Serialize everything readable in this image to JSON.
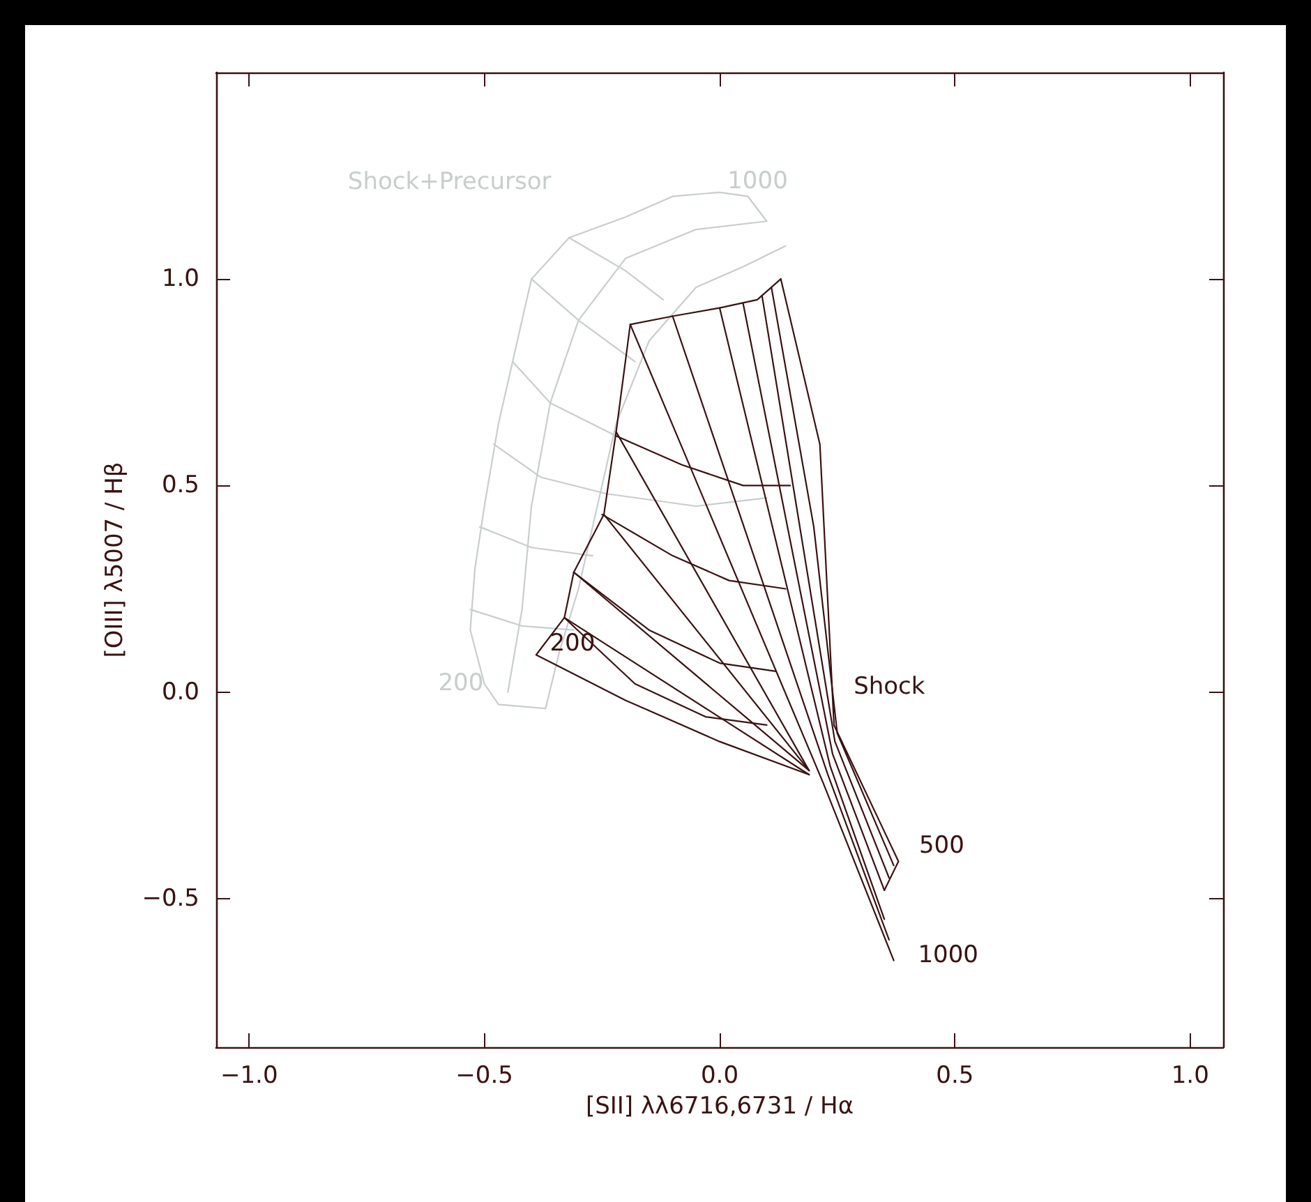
{
  "chart_data": {
    "type": "line",
    "xlabel": "[SII] λλ6716,6731 / Hα",
    "ylabel": "[OIII] λ5007 / Hβ",
    "xlim": [
      -1.07,
      1.07
    ],
    "ylim": [
      -0.86,
      1.5
    ],
    "xticks": [
      {
        "value": -1.0,
        "label": "−1.0"
      },
      -0.5,
      {
        "value": 0.0,
        "label": "0.0"
      },
      0.5,
      {
        "value": 1.0,
        "label": "1.0"
      }
    ],
    "yticks": [
      -0.5,
      {
        "value": 0.0,
        "label": "0.0"
      },
      0.5,
      {
        "value": 1.0,
        "label": "1.0"
      }
    ],
    "grid": false,
    "marker": "none",
    "line_style": "solid",
    "series": [
      {
        "name": "Shock+Precursor",
        "color": "#c8cdcd",
        "x": [
          0.14,
          0.05,
          -0.05,
          -0.15,
          -0.22,
          -0.26,
          -0.3,
          -0.34,
          -0.37,
          -0.47,
          -0.5,
          -0.53,
          -0.52,
          -0.5,
          -0.47,
          -0.44,
          -0.4,
          -0.32,
          -0.2,
          -0.1,
          0.0,
          0.06,
          0.1
        ],
        "values": [
          1.08,
          1.03,
          0.98,
          0.85,
          0.65,
          0.45,
          0.25,
          0.1,
          -0.04,
          -0.03,
          0.02,
          0.15,
          0.3,
          0.45,
          0.65,
          0.8,
          1.0,
          1.1,
          1.15,
          1.2,
          1.21,
          1.2,
          1.14
        ]
      },
      {
        "color": "#c8cdcd",
        "x": [
          -0.45,
          -0.42,
          -0.4,
          -0.36,
          -0.3,
          -0.2,
          -0.05,
          0.1
        ],
        "values": [
          0.0,
          0.2,
          0.45,
          0.7,
          0.9,
          1.05,
          1.12,
          1.14
        ]
      },
      {
        "color": "#c8cdcd",
        "x": [
          -0.32,
          -0.2,
          -0.12
        ],
        "values": [
          1.1,
          1.02,
          0.95
        ]
      },
      {
        "color": "#c8cdcd",
        "x": [
          -0.4,
          -0.3,
          -0.18
        ],
        "values": [
          1.0,
          0.9,
          0.8
        ]
      },
      {
        "color": "#c8cdcd",
        "x": [
          -0.44,
          -0.36,
          -0.22
        ],
        "values": [
          0.8,
          0.7,
          0.62
        ]
      },
      {
        "color": "#c8cdcd",
        "x": [
          -0.48,
          -0.38,
          -0.24,
          -0.05,
          0.1
        ],
        "values": [
          0.6,
          0.52,
          0.48,
          0.45,
          0.47
        ]
      },
      {
        "color": "#c8cdcd",
        "x": [
          -0.51,
          -0.4,
          -0.27
        ],
        "values": [
          0.4,
          0.35,
          0.33
        ]
      },
      {
        "color": "#c8cdcd",
        "x": [
          -0.53,
          -0.42,
          -0.31
        ],
        "values": [
          0.2,
          0.16,
          0.15
        ]
      },
      {
        "name": "Shock",
        "color": "#3a1212",
        "x": [
          0.35,
          0.38,
          0.243,
          0.213,
          0.13
        ],
        "values": [
          -0.48,
          -0.41,
          -0.08,
          0.6,
          1.0
        ]
      },
      {
        "color": "#3a1212",
        "x": [
          0.13,
          0.08,
          0.0,
          -0.1,
          -0.19,
          -0.22,
          -0.246,
          -0.31,
          -0.33,
          -0.39,
          -0.2,
          0.0,
          0.19
        ],
        "values": [
          1.0,
          0.95,
          0.93,
          0.91,
          0.89,
          0.63,
          0.43,
          0.29,
          0.18,
          0.09,
          -0.02,
          -0.12,
          -0.2
        ]
      },
      {
        "color": "#3a1212",
        "x": [
          -0.19,
          0.22,
          0.37
        ],
        "values": [
          0.89,
          -0.22,
          -0.65
        ]
      },
      {
        "color": "#3a1212",
        "x": [
          -0.1,
          0.23,
          0.36
        ],
        "values": [
          0.91,
          -0.2,
          -0.6
        ]
      },
      {
        "color": "#3a1212",
        "x": [
          0.0,
          0.235,
          0.35
        ],
        "values": [
          0.93,
          -0.18,
          -0.55
        ]
      },
      {
        "color": "#3a1212",
        "x": [
          0.05,
          0.24,
          0.35
        ],
        "values": [
          0.94,
          -0.15,
          -0.48
        ]
      },
      {
        "color": "#3a1212",
        "x": [
          0.09,
          0.245,
          0.36
        ],
        "values": [
          0.96,
          -0.12,
          -0.45
        ]
      },
      {
        "color": "#3a1212",
        "x": [
          0.11,
          0.2,
          0.25,
          0.37
        ],
        "values": [
          0.98,
          0.4,
          -0.1,
          -0.42
        ]
      },
      {
        "color": "#3a1212",
        "x": [
          -0.22,
          0.19
        ],
        "values": [
          0.63,
          -0.19
        ]
      },
      {
        "color": "#3a1212",
        "x": [
          -0.246,
          0.19
        ],
        "values": [
          0.43,
          -0.19
        ]
      },
      {
        "color": "#3a1212",
        "x": [
          -0.31,
          0.19
        ],
        "values": [
          0.29,
          -0.19
        ]
      },
      {
        "color": "#3a1212",
        "x": [
          -0.33,
          0.19
        ],
        "values": [
          0.18,
          -0.2
        ]
      },
      {
        "color": "#3a1212",
        "x": [
          -0.22,
          -0.08,
          0.05,
          0.15
        ],
        "values": [
          0.62,
          0.55,
          0.5,
          0.5
        ]
      },
      {
        "color": "#3a1212",
        "x": [
          -0.25,
          -0.1,
          0.02,
          0.14
        ],
        "values": [
          0.43,
          0.33,
          0.27,
          0.25
        ]
      },
      {
        "color": "#3a1212",
        "x": [
          -0.31,
          -0.15,
          0.0,
          0.12
        ],
        "values": [
          0.29,
          0.15,
          0.07,
          0.05
        ]
      },
      {
        "color": "#3a1212",
        "x": [
          -0.33,
          -0.18,
          -0.03,
          0.1
        ],
        "values": [
          0.18,
          0.02,
          -0.06,
          -0.08
        ]
      }
    ],
    "annotations": [
      {
        "text": "1000",
        "x": 0.06,
        "y": 1.2
      },
      {
        "text": "200",
        "x": -0.47,
        "y": -0.03
      },
      {
        "text": "200",
        "x": -0.39,
        "y": 0.09
      },
      {
        "text": "500",
        "x": 0.38,
        "y": -0.41
      },
      {
        "text": "1000",
        "x": 0.37,
        "y": -0.65
      }
    ]
  }
}
